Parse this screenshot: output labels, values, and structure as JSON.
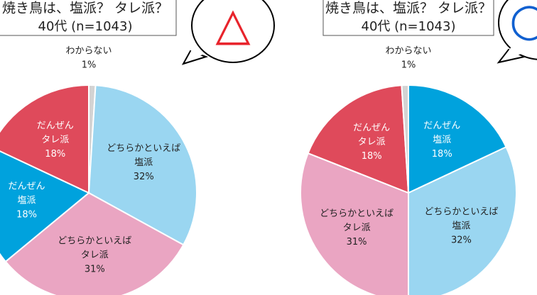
{
  "chart_data": [
    {
      "type": "pie",
      "title": "焼き鳥は、塩派？ タレ派？",
      "subtitle": "40代 (n=1043)",
      "annotation": "△",
      "annotation_color": "#e8242c",
      "categories": [
        [
          "わからない"
        ],
        [
          "どちらかといえば",
          "塩派"
        ],
        [
          "どちらかといえば",
          "タレ派"
        ],
        [
          "だんぜん",
          "塩派"
        ],
        [
          "だんぜん",
          "タレ派"
        ]
      ],
      "values": [
        1,
        32,
        31,
        18,
        18
      ],
      "value_labels": [
        "1%",
        "32%",
        "31%",
        "18%",
        "18%"
      ],
      "colors": [
        "#d3d3d3",
        "#9ad6f1",
        "#eaa5c2",
        "#00a2dd",
        "#df4a5b"
      ]
    },
    {
      "type": "pie",
      "title": "焼き鳥は、塩派？ タレ派？",
      "subtitle": "40代 (n=1043)",
      "annotation": "○",
      "annotation_color": "#1060d0",
      "categories": [
        [
          "だんぜん",
          "塩派"
        ],
        [
          "どちらかといえば",
          "塩派"
        ],
        [
          "どちらかといえば",
          "タレ派"
        ],
        [
          "だんぜん",
          "タレ派"
        ],
        [
          "わからない"
        ]
      ],
      "values": [
        18,
        32,
        31,
        18,
        1
      ],
      "value_labels": [
        "18%",
        "32%",
        "31%",
        "18%",
        "1%"
      ],
      "colors": [
        "#00a2dd",
        "#9ad6f1",
        "#eaa5c2",
        "#df4a5b",
        "#d3d3d3"
      ]
    }
  ]
}
